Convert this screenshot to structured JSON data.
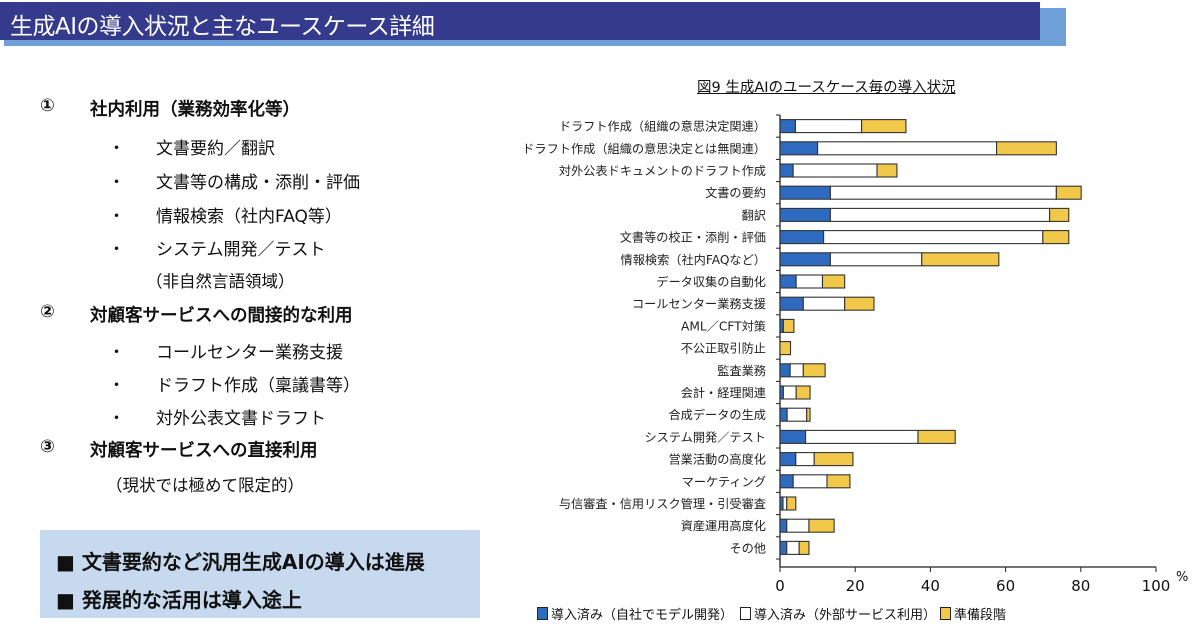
{
  "header": {
    "title": "生成AIの導入状況と主なユースケース詳細",
    "colors": {
      "bar": "#353A8C",
      "shadow": "#6FA0D8"
    }
  },
  "sections": [
    {
      "number": "①",
      "label": "社内利用（業務効率化等）",
      "items": [
        "文書要約／翻訳",
        "文書等の構成・添削・評価",
        "情報検索（社内FAQ等）",
        "システム開発／テスト"
      ],
      "note": "（非自然言語領域）"
    },
    {
      "number": "②",
      "label": "対顧客サービスへの間接的な利用",
      "items": [
        "コールセンター業務支援",
        "ドラフト作成（稟議書等）",
        "対外公表文書ドラフト"
      ]
    },
    {
      "number": "③",
      "label": "対顧客サービスへの直接利用",
      "items": [],
      "note": "（現状では極めて限定的）"
    }
  ],
  "bullet_char": "・",
  "callout": {
    "lines": [
      "■ 文書要約など汎用生成AIの導入は進展",
      "■ 発展的な活用は導入途上"
    ],
    "color": "#C6D9EE"
  },
  "chart_data": {
    "type": "bar",
    "orientation": "horizontal",
    "stacked": true,
    "title": "図9  生成AIのユースケース毎の導入状況",
    "xlabel": "%",
    "ylabel": "",
    "xlim": [
      0,
      100
    ],
    "xticks": [
      0,
      20,
      40,
      60,
      80,
      100
    ],
    "grid": false,
    "legend_position": "bottom",
    "categories": [
      "ドラフト作成（組織の意思決定関連）",
      "ドラフト作成（組織の意思決定とは無関連）",
      "対外公表ドキュメントのドラフト作成",
      "文書の要約",
      "翻訳",
      "文書等の校正・添削・評価",
      "情報検索（社内FAQなど）",
      "データ収集の自動化",
      "コールセンター業務支援",
      "AML／CFT対策",
      "不公正取引防止",
      "監査業務",
      "会計・経理関連",
      "合成データの生成",
      "システム開発／テスト",
      "営業活動の高度化",
      "マーケティング",
      "与信審査・信用リスク管理・引受審査",
      "資産運用高度化",
      "その他"
    ],
    "series": [
      {
        "name": "導入済み（自社でモデル開発）",
        "color": "#2E6BC0",
        "values": [
          4.1,
          10.0,
          3.5,
          13.4,
          13.4,
          11.6,
          13.4,
          4.3,
          6.2,
          0.9,
          0.0,
          2.7,
          0.9,
          1.9,
          6.8,
          4.2,
          3.5,
          0.8,
          1.8,
          1.8
        ]
      },
      {
        "name": "導入済み（外部サービス利用）",
        "color": "#FFFFFF",
        "values": [
          17.6,
          47.6,
          22.3,
          60.1,
          58.3,
          58.3,
          24.3,
          7.0,
          11.0,
          0.0,
          0.0,
          3.5,
          3.4,
          5.2,
          29.9,
          4.9,
          9.0,
          1.0,
          5.9,
          3.3
        ]
      },
      {
        "name": "準備段階",
        "color": "#F2C84B",
        "values": [
          11.8,
          15.9,
          5.3,
          6.6,
          5.1,
          6.9,
          20.5,
          5.9,
          7.8,
          2.8,
          2.8,
          5.8,
          3.7,
          0.9,
          9.9,
          10.3,
          6.1,
          2.4,
          6.7,
          2.6
        ]
      }
    ]
  }
}
